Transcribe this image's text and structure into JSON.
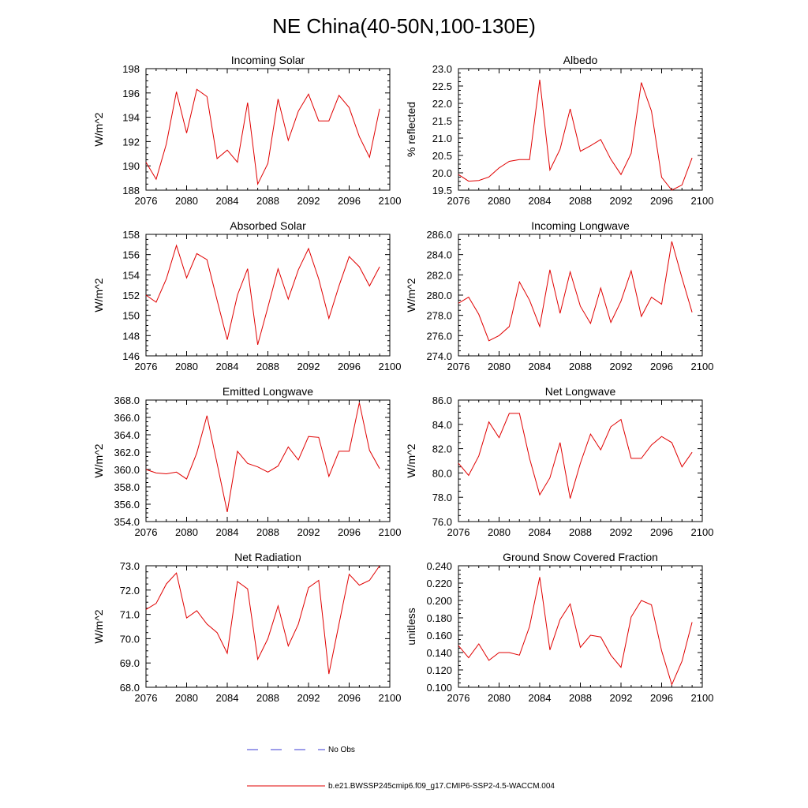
{
  "figure_title": "NE China(40-50N,100-130E)",
  "legend": {
    "obs_label": "No Obs",
    "model_label": "b.e21.BWSSP245cmip6.f09_g17.CMIP6-SSP2-4.5-WACCM.004",
    "obs_color": "#3b3bd6",
    "model_color": "#e00000"
  },
  "chart_data": [
    {
      "type": "line",
      "title": "Incoming Solar",
      "ylabel": "W/m^2",
      "xlim": [
        2076,
        2100
      ],
      "xticks": [
        "2076",
        "2080",
        "2084",
        "2088",
        "2092",
        "2096",
        "2100"
      ],
      "ylim": [
        188,
        198
      ],
      "yticks": [
        "188",
        "190",
        "192",
        "194",
        "196",
        "198"
      ],
      "x": [
        2076,
        2077,
        2078,
        2079,
        2080,
        2081,
        2082,
        2083,
        2084,
        2085,
        2086,
        2087,
        2088,
        2089,
        2090,
        2091,
        2092,
        2093,
        2094,
        2095,
        2096,
        2097,
        2098,
        2099
      ],
      "series": [
        {
          "name": "b.e21.BWSSP245cmip6.f09_g17.CMIP6-SSP2-4.5-WACCM.004",
          "values": [
            190.3,
            188.9,
            191.8,
            196.1,
            192.7,
            196.3,
            195.7,
            190.6,
            191.3,
            190.3,
            195.2,
            188.5,
            190.2,
            195.5,
            192.1,
            194.5,
            195.9,
            193.7,
            193.7,
            195.8,
            194.8,
            192.4,
            190.7,
            194.7
          ]
        }
      ]
    },
    {
      "type": "line",
      "title": "Albedo",
      "ylabel": "% reflected",
      "xlim": [
        2076,
        2100
      ],
      "xticks": [
        "2076",
        "2080",
        "2084",
        "2088",
        "2092",
        "2096",
        "2100"
      ],
      "ylim": [
        19.5,
        23.0
      ],
      "yticks": [
        "19.5",
        "20.0",
        "20.5",
        "21.0",
        "21.5",
        "22.0",
        "22.5",
        "23.0"
      ],
      "x": [
        2076,
        2077,
        2078,
        2079,
        2080,
        2081,
        2082,
        2083,
        2084,
        2085,
        2086,
        2087,
        2088,
        2089,
        2090,
        2091,
        2092,
        2093,
        2094,
        2095,
        2096,
        2097,
        2098,
        2099
      ],
      "series": [
        {
          "name": "b.e21.BWSSP245cmip6.f09_g17.CMIP6-SSP2-4.5-WACCM.004",
          "values": [
            19.95,
            19.76,
            19.78,
            19.88,
            20.14,
            20.33,
            20.38,
            20.38,
            22.68,
            20.08,
            20.68,
            21.84,
            20.62,
            20.78,
            20.96,
            20.39,
            19.95,
            20.56,
            22.6,
            21.78,
            19.87,
            19.5,
            19.65,
            20.43
          ]
        }
      ]
    },
    {
      "type": "line",
      "title": "Absorbed Solar",
      "ylabel": "W/m^2",
      "xlim": [
        2076,
        2100
      ],
      "xticks": [
        "2076",
        "2080",
        "2084",
        "2088",
        "2092",
        "2096",
        "2100"
      ],
      "ylim": [
        146,
        158
      ],
      "yticks": [
        "146",
        "148",
        "150",
        "152",
        "154",
        "156",
        "158"
      ],
      "x": [
        2076,
        2077,
        2078,
        2079,
        2080,
        2081,
        2082,
        2083,
        2084,
        2085,
        2086,
        2087,
        2088,
        2089,
        2090,
        2091,
        2092,
        2093,
        2094,
        2095,
        2096,
        2097,
        2098,
        2099
      ],
      "series": [
        {
          "name": "b.e21.BWSSP245cmip6.f09_g17.CMIP6-SSP2-4.5-WACCM.004",
          "values": [
            152.0,
            151.3,
            153.6,
            156.9,
            153.7,
            156.1,
            155.5,
            151.5,
            147.6,
            152.0,
            154.6,
            147.1,
            150.8,
            154.6,
            151.6,
            154.5,
            156.6,
            153.6,
            149.7,
            152.9,
            155.8,
            154.8,
            152.9,
            154.8
          ]
        }
      ]
    },
    {
      "type": "line",
      "title": "Incoming Longwave",
      "ylabel": "W/m^2",
      "xlim": [
        2076,
        2100
      ],
      "xticks": [
        "2076",
        "2080",
        "2084",
        "2088",
        "2092",
        "2096",
        "2100"
      ],
      "ylim": [
        274.0,
        286.0
      ],
      "yticks": [
        "274.0",
        "276.0",
        "278.0",
        "280.0",
        "282.0",
        "284.0",
        "286.0"
      ],
      "x": [
        2076,
        2077,
        2078,
        2079,
        2080,
        2081,
        2082,
        2083,
        2084,
        2085,
        2086,
        2087,
        2088,
        2089,
        2090,
        2091,
        2092,
        2093,
        2094,
        2095,
        2096,
        2097,
        2098,
        2099
      ],
      "series": [
        {
          "name": "b.e21.BWSSP245cmip6.f09_g17.CMIP6-SSP2-4.5-WACCM.004",
          "values": [
            279.2,
            279.8,
            278.1,
            275.5,
            276.0,
            276.9,
            281.3,
            279.5,
            276.9,
            282.5,
            278.2,
            282.3,
            278.9,
            277.2,
            280.7,
            277.3,
            279.4,
            282.4,
            277.9,
            279.8,
            279.1,
            285.3,
            281.7,
            278.3
          ]
        }
      ]
    },
    {
      "type": "line",
      "title": "Emitted Longwave",
      "ylabel": "W/m^2",
      "xlim": [
        2076,
        2100
      ],
      "xticks": [
        "2076",
        "2080",
        "2084",
        "2088",
        "2092",
        "2096",
        "2100"
      ],
      "ylim": [
        354.0,
        368.0
      ],
      "yticks": [
        "354.0",
        "356.0",
        "358.0",
        "360.0",
        "362.0",
        "364.0",
        "366.0",
        "368.0"
      ],
      "x": [
        2076,
        2077,
        2078,
        2079,
        2080,
        2081,
        2082,
        2083,
        2084,
        2085,
        2086,
        2087,
        2088,
        2089,
        2090,
        2091,
        2092,
        2093,
        2094,
        2095,
        2096,
        2097,
        2098,
        2099
      ],
      "series": [
        {
          "name": "b.e21.BWSSP245cmip6.f09_g17.CMIP6-SSP2-4.5-WACCM.004",
          "values": [
            360.0,
            359.6,
            359.5,
            359.7,
            358.9,
            361.9,
            366.2,
            360.7,
            355.1,
            362.1,
            360.7,
            360.3,
            359.7,
            360.4,
            362.6,
            361.1,
            363.8,
            363.7,
            359.2,
            362.1,
            362.1,
            367.7,
            362.2,
            360.1
          ]
        }
      ]
    },
    {
      "type": "line",
      "title": "Net Longwave",
      "ylabel": "W/m^2",
      "xlim": [
        2076,
        2100
      ],
      "xticks": [
        "2076",
        "2080",
        "2084",
        "2088",
        "2092",
        "2096",
        "2100"
      ],
      "ylim": [
        76.0,
        86.0
      ],
      "yticks": [
        "76.0",
        "78.0",
        "80.0",
        "82.0",
        "84.0",
        "86.0"
      ],
      "x": [
        2076,
        2077,
        2078,
        2079,
        2080,
        2081,
        2082,
        2083,
        2084,
        2085,
        2086,
        2087,
        2088,
        2089,
        2090,
        2091,
        2092,
        2093,
        2094,
        2095,
        2096,
        2097,
        2098,
        2099
      ],
      "series": [
        {
          "name": "b.e21.BWSSP245cmip6.f09_g17.CMIP6-SSP2-4.5-WACCM.004",
          "values": [
            80.8,
            79.8,
            81.4,
            84.2,
            82.9,
            84.9,
            84.9,
            81.2,
            78.2,
            79.6,
            82.5,
            77.9,
            80.8,
            83.2,
            81.9,
            83.8,
            84.4,
            81.2,
            81.2,
            82.3,
            83.0,
            82.5,
            80.5,
            81.7
          ]
        }
      ]
    },
    {
      "type": "line",
      "title": "Net Radiation",
      "ylabel": "W/m^2",
      "xlim": [
        2076,
        2100
      ],
      "xticks": [
        "2076",
        "2080",
        "2084",
        "2088",
        "2092",
        "2096",
        "2100"
      ],
      "ylim": [
        68.0,
        73.0
      ],
      "yticks": [
        "68.0",
        "69.0",
        "70.0",
        "71.0",
        "72.0",
        "73.0"
      ],
      "x": [
        2076,
        2077,
        2078,
        2079,
        2080,
        2081,
        2082,
        2083,
        2084,
        2085,
        2086,
        2087,
        2088,
        2089,
        2090,
        2091,
        2092,
        2093,
        2094,
        2095,
        2096,
        2097,
        2098,
        2099
      ],
      "series": [
        {
          "name": "b.e21.BWSSP245cmip6.f09_g17.CMIP6-SSP2-4.5-WACCM.004",
          "values": [
            71.2,
            71.45,
            72.25,
            72.7,
            70.85,
            71.15,
            70.6,
            70.25,
            69.4,
            72.35,
            72.05,
            69.15,
            70.0,
            71.35,
            69.7,
            70.6,
            72.1,
            72.4,
            68.55,
            70.6,
            72.65,
            72.2,
            72.4,
            73.0
          ]
        }
      ]
    },
    {
      "type": "line",
      "title": "Ground Snow Covered Fraction",
      "ylabel": "unitless",
      "xlim": [
        2076,
        2100
      ],
      "xticks": [
        "2076",
        "2080",
        "2084",
        "2088",
        "2092",
        "2096",
        "2100"
      ],
      "ylim": [
        0.1,
        0.24
      ],
      "yticks": [
        "0.100",
        "0.120",
        "0.140",
        "0.160",
        "0.180",
        "0.200",
        "0.220",
        "0.240"
      ],
      "x": [
        2076,
        2077,
        2078,
        2079,
        2080,
        2081,
        2082,
        2083,
        2084,
        2085,
        2086,
        2087,
        2088,
        2089,
        2090,
        2091,
        2092,
        2093,
        2094,
        2095,
        2096,
        2097,
        2098,
        2099
      ],
      "series": [
        {
          "name": "b.e21.BWSSP245cmip6.f09_g17.CMIP6-SSP2-4.5-WACCM.004",
          "values": [
            0.148,
            0.134,
            0.15,
            0.131,
            0.14,
            0.14,
            0.137,
            0.17,
            0.227,
            0.143,
            0.178,
            0.196,
            0.146,
            0.16,
            0.158,
            0.137,
            0.123,
            0.181,
            0.2,
            0.195,
            0.142,
            0.103,
            0.13,
            0.175
          ]
        }
      ]
    }
  ]
}
